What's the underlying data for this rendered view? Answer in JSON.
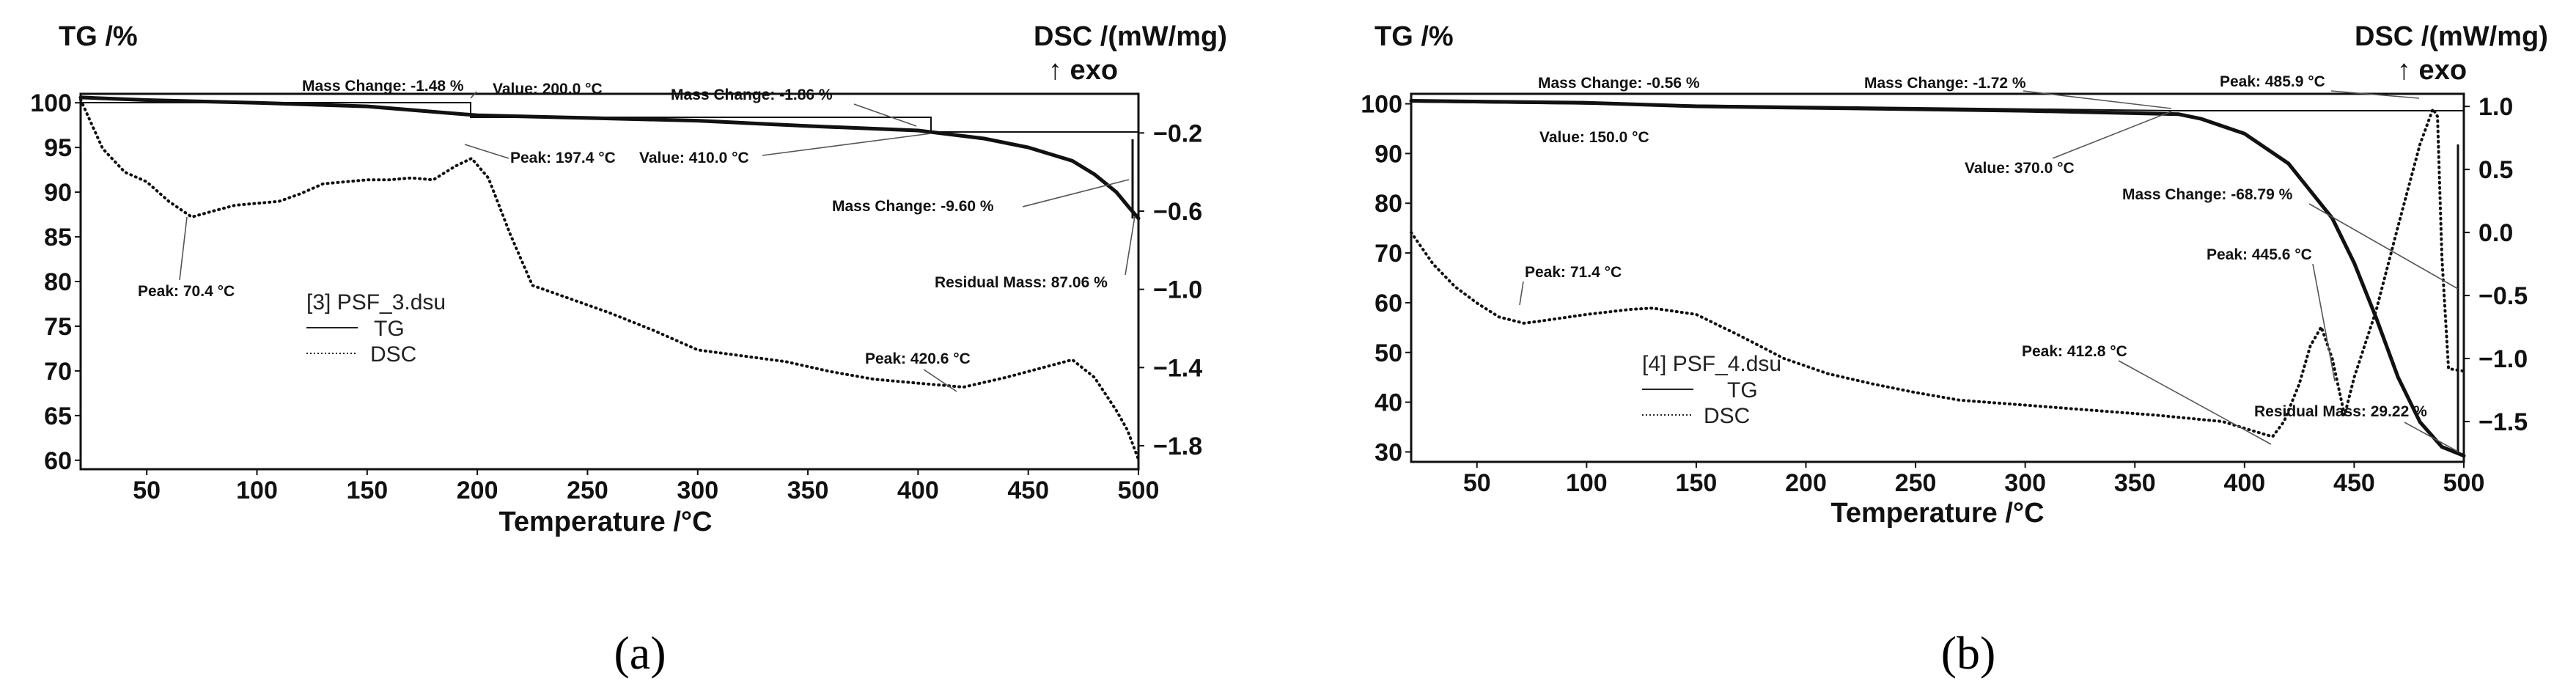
{
  "panels": [
    {
      "id": "a",
      "caption": "(a)",
      "y_left_label": "TG /%",
      "y_right_label": "DSC /(mW/mg)",
      "exo_label": "↑ exo",
      "x_label": "Temperature /°C",
      "legend": {
        "title": "[3] PSF_3.dsu",
        "tg": "TG",
        "dsc": "DSC"
      },
      "x_ticks": [
        "50",
        "100",
        "150",
        "200",
        "250",
        "300",
        "350",
        "400",
        "450",
        "500"
      ],
      "y_left_ticks": [
        "100",
        "95",
        "90",
        "85",
        "80",
        "75",
        "70",
        "65",
        "60"
      ],
      "y_right_ticks": [
        "−0.2",
        "−0.6",
        "−1.0",
        "−1.4",
        "−1.8"
      ],
      "annotations": [
        "Mass Change: -1.48 %",
        "Value: 200.0 °C",
        "Peak: 197.4 °C",
        "Mass Change: -1.86 %",
        "Value: 410.0 °C",
        "Mass Change: -9.60 %",
        "Residual Mass: 87.06 %",
        "Peak: 70.4 °C",
        "Peak: 420.6 °C"
      ]
    },
    {
      "id": "b",
      "caption": "(b)",
      "y_left_label": "TG /%",
      "y_right_label": "DSC /(mW/mg)",
      "exo_label": "↑ exo",
      "x_label": "Temperature /°C",
      "legend": {
        "title": "[4] PSF_4.dsu",
        "tg": "TG",
        "dsc": "DSC"
      },
      "x_ticks": [
        "50",
        "100",
        "150",
        "200",
        "250",
        "300",
        "350",
        "400",
        "450",
        "500"
      ],
      "y_left_ticks": [
        "100",
        "90",
        "80",
        "70",
        "60",
        "50",
        "40",
        "30"
      ],
      "y_right_ticks": [
        "1.0",
        "0.5",
        "0.0",
        "−0.5",
        "−1.0",
        "−1.5"
      ],
      "annotations": [
        "Mass Change: -0.56 %",
        "Mass Change: -1.72 %",
        "Peak: 485.9 °C",
        "Value: 150.0 °C",
        "Value: 370.0 °C",
        "Mass Change: -68.79 %",
        "Peak: 71.4 °C",
        "Peak: 445.6 °C",
        "Peak: 412.8 °C",
        "Residual Mass: 29.22 %"
      ]
    }
  ],
  "chart_data": [
    {
      "type": "line",
      "x_range": [
        20,
        500
      ],
      "ylim_left": [
        59,
        101
      ],
      "ylim_right": [
        -1.92,
        0.0
      ],
      "series": [
        {
          "name": "TG",
          "axis": "left",
          "style": "solid",
          "x": [
            20,
            50,
            100,
            150,
            200,
            250,
            300,
            350,
            400,
            410,
            430,
            450,
            470,
            480,
            490,
            495,
            500
          ],
          "y": [
            100.6,
            100.3,
            100.0,
            99.6,
            98.6,
            98.3,
            98.0,
            97.4,
            96.9,
            96.6,
            96.0,
            95.0,
            93.5,
            92.0,
            90.0,
            88.5,
            87.06
          ]
        },
        {
          "name": "DSC",
          "axis": "right",
          "style": "dotted",
          "x": [
            20,
            30,
            40,
            50,
            60,
            70.4,
            80,
            90,
            100,
            110,
            120,
            130,
            150,
            160,
            170,
            180,
            190,
            197.4,
            205,
            215,
            225,
            240,
            260,
            280,
            300,
            320,
            340,
            360,
            380,
            400,
            420.6,
            440,
            460,
            470,
            480,
            490,
            495,
            500
          ],
          "y": [
            -0.03,
            -0.28,
            -0.4,
            -0.45,
            -0.55,
            -0.63,
            -0.6,
            -0.57,
            -0.56,
            -0.55,
            -0.51,
            -0.46,
            -0.44,
            -0.44,
            -0.43,
            -0.44,
            -0.37,
            -0.33,
            -0.43,
            -0.72,
            -0.98,
            -1.04,
            -1.12,
            -1.21,
            -1.31,
            -1.34,
            -1.37,
            -1.42,
            -1.46,
            -1.48,
            -1.5,
            -1.45,
            -1.39,
            -1.36,
            -1.45,
            -1.62,
            -1.72,
            -1.87
          ]
        }
      ]
    },
    {
      "type": "line",
      "x_range": [
        20,
        500
      ],
      "ylim_left": [
        28,
        102
      ],
      "ylim_right": [
        -1.82,
        1.1
      ],
      "series": [
        {
          "name": "TG",
          "axis": "left",
          "style": "solid",
          "x": [
            20,
            100,
            150,
            250,
            300,
            370,
            380,
            400,
            420,
            440,
            450,
            460,
            470,
            480,
            490,
            500
          ],
          "y": [
            100.6,
            100.2,
            99.5,
            98.9,
            98.6,
            97.9,
            97.0,
            94.0,
            88.0,
            77.0,
            68.0,
            57.0,
            45.0,
            36.0,
            31.0,
            29.22
          ]
        },
        {
          "name": "DSC",
          "axis": "right",
          "style": "dotted",
          "x": [
            20,
            30,
            40,
            50,
            60,
            71.4,
            80,
            100,
            120,
            130,
            150,
            170,
            190,
            210,
            230,
            250,
            270,
            300,
            330,
            360,
            390,
            405,
            412.8,
            418,
            425,
            430,
            435,
            440,
            445.6,
            450,
            460,
            470,
            480,
            485.9,
            488,
            490,
            493,
            500
          ],
          "y": [
            0.0,
            -0.25,
            -0.43,
            -0.56,
            -0.67,
            -0.72,
            -0.7,
            -0.65,
            -0.61,
            -0.6,
            -0.65,
            -0.82,
            -1.0,
            -1.12,
            -1.2,
            -1.27,
            -1.33,
            -1.37,
            -1.41,
            -1.45,
            -1.5,
            -1.58,
            -1.62,
            -1.5,
            -1.2,
            -0.9,
            -0.75,
            -1.0,
            -1.45,
            -1.15,
            -0.62,
            0.05,
            0.7,
            0.98,
            0.92,
            -0.2,
            -1.08,
            -1.1
          ]
        }
      ]
    }
  ]
}
